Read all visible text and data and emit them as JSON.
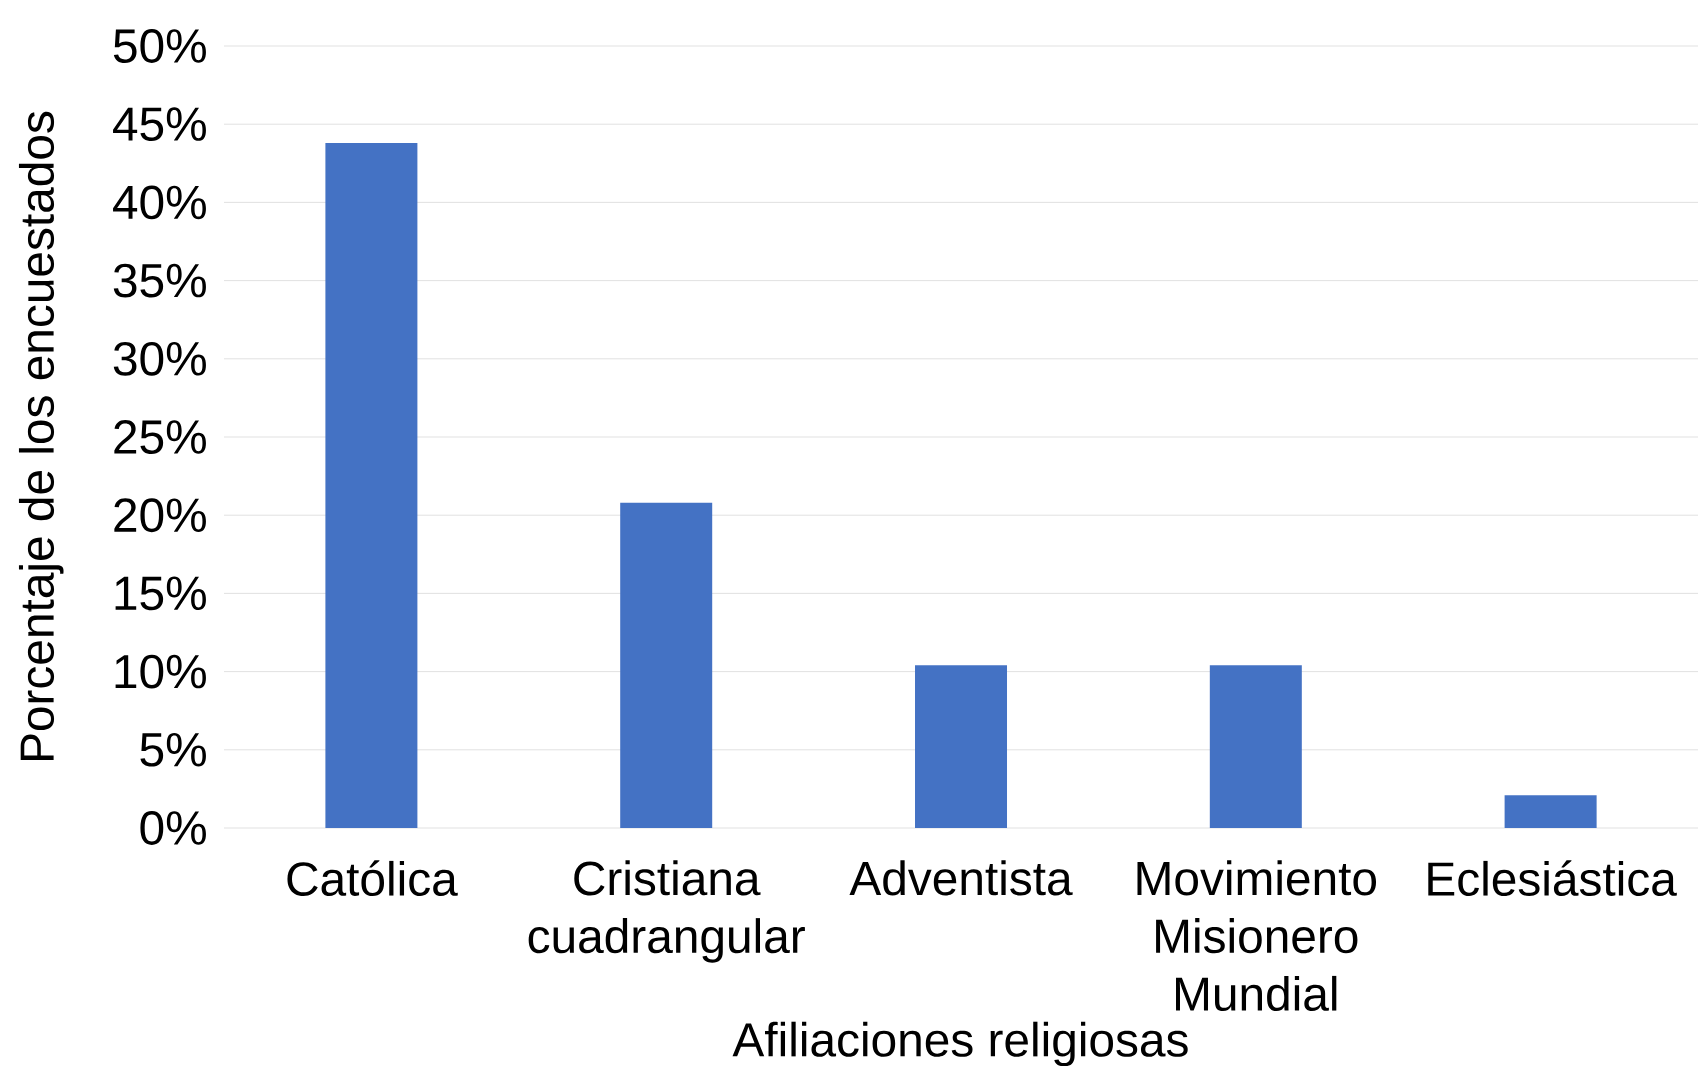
{
  "chart_data": {
    "type": "bar",
    "xlabel": "Afiliaciones religiosas",
    "ylabel": "Porcentaje de los encuestados",
    "categories": [
      "Católica",
      "Cristiana cuadrangular",
      "Adventista",
      "Movimiento Misionero Mundial",
      "Eclesiástica"
    ],
    "values": [
      43.8,
      20.8,
      10.4,
      10.4,
      2.1
    ],
    "color": "#4472c4",
    "ylim": [
      0,
      50
    ],
    "yticks": [
      {
        "value": 0,
        "label": "0%"
      },
      {
        "value": 5,
        "label": "5%"
      },
      {
        "value": 10,
        "label": "10%"
      },
      {
        "value": 15,
        "label": "15%"
      },
      {
        "value": 20,
        "label": "20%"
      },
      {
        "value": 25,
        "label": "25%"
      },
      {
        "value": 30,
        "label": "30%"
      },
      {
        "value": 35,
        "label": "35%"
      },
      {
        "value": 40,
        "label": "40%"
      },
      {
        "value": 45,
        "label": "45%"
      },
      {
        "value": 50,
        "label": "50%"
      }
    ],
    "grid": "y"
  }
}
